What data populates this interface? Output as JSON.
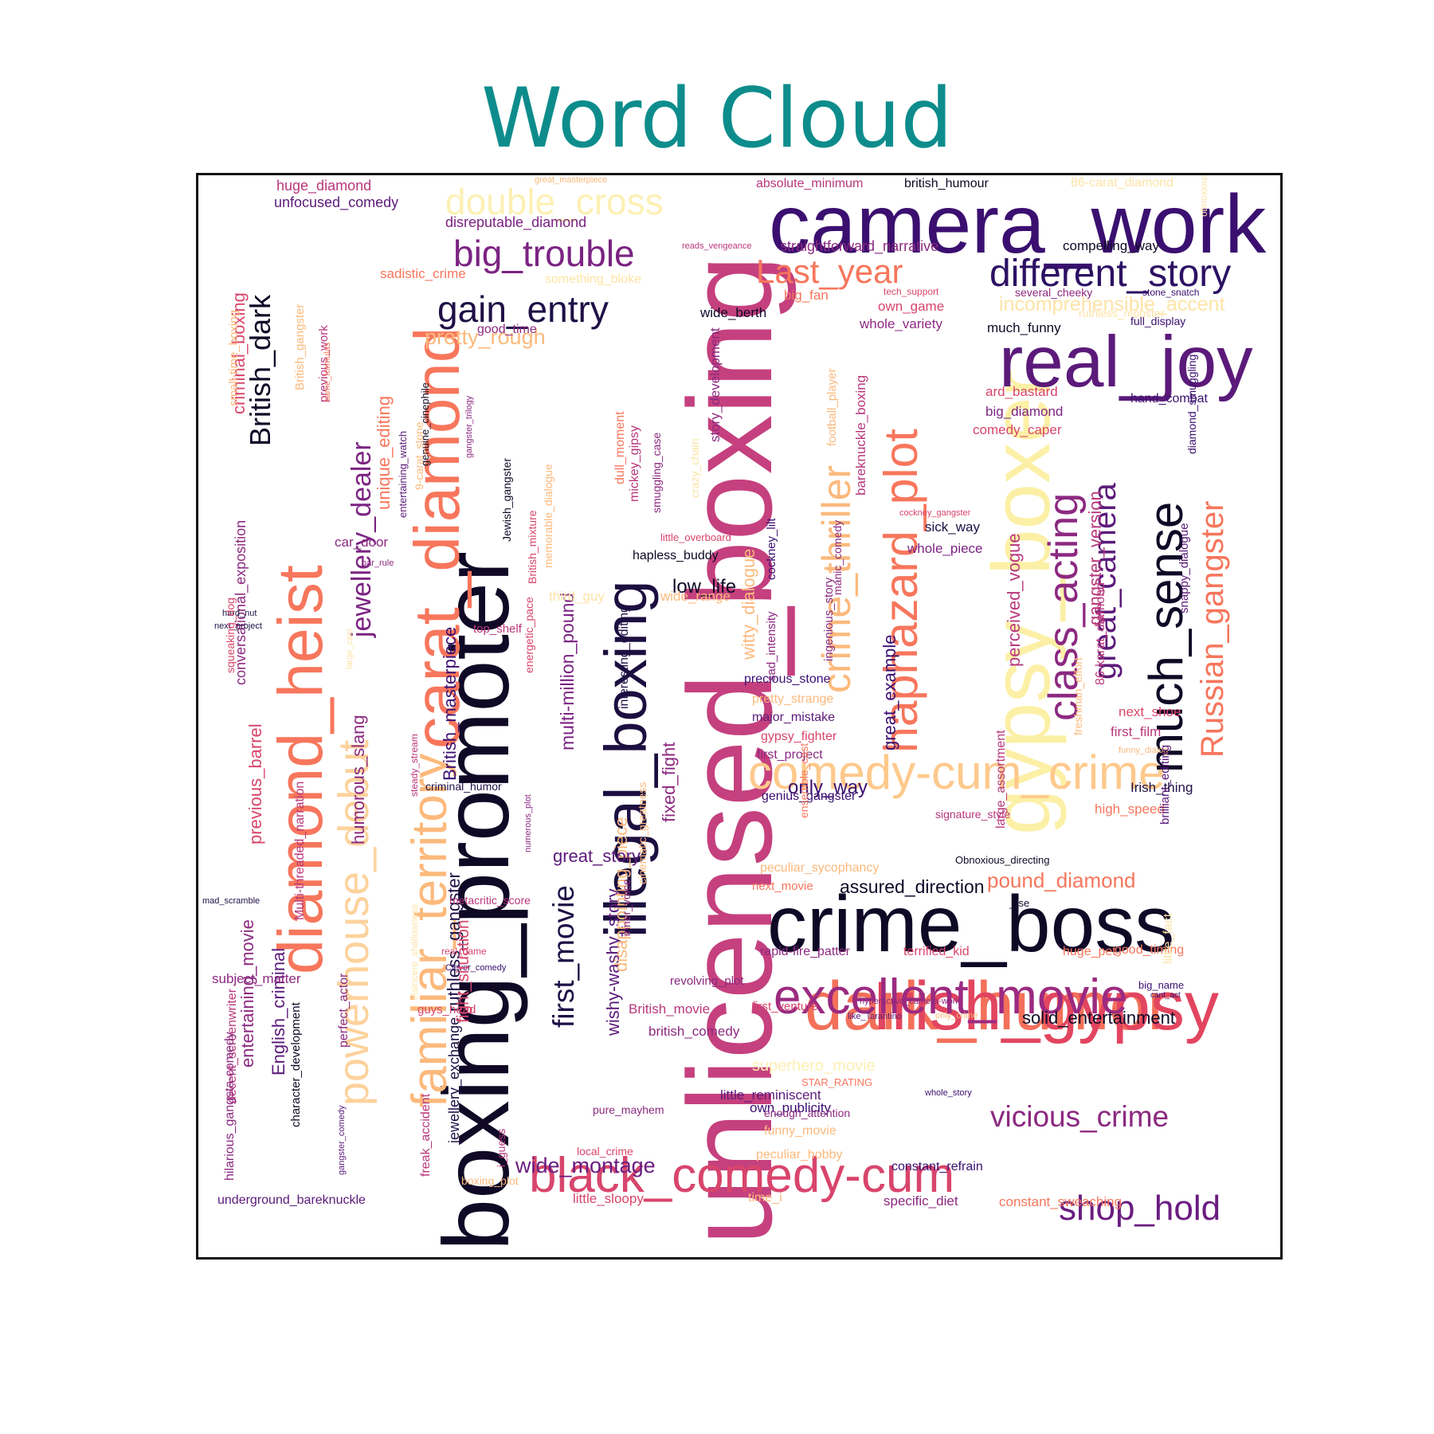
{
  "title": "Word Cloud",
  "words": [
    {
      "text": "unlicensed_boxing",
      "color": "#c5407e"
    },
    {
      "text": "boxing_promoter",
      "color": "#0f0926"
    },
    {
      "text": "camera_work",
      "color": "#3b0f70"
    },
    {
      "text": "crime_boss",
      "color": "#0f0926"
    },
    {
      "text": "gypsy_boxer",
      "color": "#fcf0a6"
    },
    {
      "text": "real_joy",
      "color": "#5b1a7a"
    },
    {
      "text": "dark_humor",
      "color": "#f3705a"
    },
    {
      "text": "Irish_gypsy",
      "color": "#e2455f"
    },
    {
      "text": "illegal_boxing",
      "color": "#1c0f40"
    },
    {
      "text": "diamond_heist",
      "color": "#f7765c"
    },
    {
      "text": "carat_diamond",
      "color": "#f7765c"
    },
    {
      "text": "familiar_territory",
      "color": "#fcb97c"
    },
    {
      "text": "comedy-cum_crime",
      "color": "#fec98c"
    },
    {
      "text": "excellent_movie",
      "color": "#9b2a80"
    },
    {
      "text": "black_comedy-cum",
      "color": "#d8456c"
    },
    {
      "text": "haphazard_plot",
      "color": "#f7765c"
    },
    {
      "text": "crime_thriller",
      "color": "#fcb97c"
    },
    {
      "text": "much_sense",
      "color": "#0f0926"
    },
    {
      "text": "different_story",
      "color": "#2c1163"
    },
    {
      "text": "powerhouse_debut",
      "color": "#fdd29c"
    },
    {
      "text": "double_cross",
      "color": "#fdf0b4"
    },
    {
      "text": "big_trouble",
      "color": "#7b2382"
    },
    {
      "text": "gain_entry",
      "color": "#1e1046"
    },
    {
      "text": "Last_year",
      "color": "#f7765c"
    },
    {
      "text": "class_acting",
      "color": "#8c2981"
    },
    {
      "text": "great_camera",
      "color": "#5b1a7a"
    },
    {
      "text": "Russian_gangster",
      "color": "#f7765c"
    },
    {
      "text": "shop_hold",
      "color": "#6a1c81"
    },
    {
      "text": "vicious_crime",
      "color": "#8c2981"
    },
    {
      "text": "first_movie",
      "color": "#1e1046"
    },
    {
      "text": "jewellery_dealer",
      "color": "#7b2382"
    },
    {
      "text": "British_dark",
      "color": "#0f0926"
    },
    {
      "text": "wide_montage",
      "color": "#6a1c81"
    },
    {
      "text": "solid_entertainment",
      "color": "#0f0926"
    },
    {
      "text": "pound_diamond",
      "color": "#f7765c"
    },
    {
      "text": "assured_direction",
      "color": "#0f0926"
    },
    {
      "text": "multi-million_pound",
      "color": "#7b2382"
    },
    {
      "text": "British_masterpiece",
      "color": "#3b0f70"
    },
    {
      "text": "ruthless_gangster",
      "color": "#1e1046"
    },
    {
      "text": "wishy-washy_story",
      "color": "#5b1a7a"
    },
    {
      "text": "disappointing_piece",
      "color": "#fcb97c"
    },
    {
      "text": "fixed_fight",
      "color": "#8c2981"
    },
    {
      "text": "great_story",
      "color": "#5b1a7a"
    },
    {
      "text": "pretty_rough",
      "color": "#fcb97c"
    },
    {
      "text": "witty_dialogue",
      "color": "#fcb97c"
    },
    {
      "text": "great_example",
      "color": "#3b0f70"
    },
    {
      "text": "perceived_vogue",
      "color": "#b8377c"
    },
    {
      "text": "incomprehensible_accent",
      "color": "#fde4a6"
    },
    {
      "text": "English_criminal",
      "color": "#5b1a7a"
    },
    {
      "text": "entertaining_movie",
      "color": "#8c2981"
    },
    {
      "text": "previous_barrel",
      "color": "#d8456c"
    },
    {
      "text": "humorous_slang",
      "color": "#8c2981"
    },
    {
      "text": "unique_editing",
      "color": "#f7765c"
    },
    {
      "text": "criminal_boxing",
      "color": "#d8456c"
    },
    {
      "text": "conversational_exposition",
      "color": "#8c2981"
    },
    {
      "text": "gangster_version",
      "color": "#b8377c"
    },
    {
      "text": "low_life",
      "color": "#0f0926"
    },
    {
      "text": "only_way",
      "color": "#3b0f70"
    },
    {
      "text": "huge_diamond",
      "color": "#b8377c"
    },
    {
      "text": "unfocused_comedy",
      "color": "#5b1a7a"
    },
    {
      "text": "disreputable_diamond",
      "color": "#7b2382"
    },
    {
      "text": "absolute_minimum",
      "color": "#b8377c"
    },
    {
      "text": "british_humour",
      "color": "#0f0926"
    },
    {
      "text": "86-carat_diamond",
      "color": "#fde4a6"
    },
    {
      "text": "straightforward_narrative",
      "color": "#8c2981"
    },
    {
      "text": "compelling_way",
      "color": "#0f0926"
    },
    {
      "text": "sadistic_crime",
      "color": "#f7765c"
    },
    {
      "text": "something_bloke",
      "color": "#fde4a6"
    },
    {
      "text": "good_time",
      "color": "#8c2981"
    },
    {
      "text": "wide_berth",
      "color": "#0f0926"
    },
    {
      "text": "big_fan",
      "color": "#f7765c"
    },
    {
      "text": "own_game",
      "color": "#d8456c"
    },
    {
      "text": "whole_variety",
      "color": "#8c2981"
    },
    {
      "text": "much_funny",
      "color": "#0f0926"
    },
    {
      "text": "ard_bastard",
      "color": "#d8456c"
    },
    {
      "text": "big_diamond",
      "color": "#7b2382"
    },
    {
      "text": "comedy_caper",
      "color": "#d8456c"
    },
    {
      "text": "hand_combat",
      "color": "#3b0f70"
    },
    {
      "text": "full_display",
      "color": "#3b0f70"
    },
    {
      "text": "several_cheeky",
      "color": "#8c2981"
    },
    {
      "text": "stone_snatch",
      "color": "#3b0f70"
    },
    {
      "text": "ruthless_mobster",
      "color": "#fde4a6"
    },
    {
      "text": "tech_support",
      "color": "#d8456c"
    },
    {
      "text": "reads_vengeance",
      "color": "#b8377c"
    },
    {
      "text": "great_masterpiece",
      "color": "#fcb97c"
    },
    {
      "text": "sick_way",
      "color": "#1e1046"
    },
    {
      "text": "whole_piece",
      "color": "#7b2382"
    },
    {
      "text": "cockney_gangster",
      "color": "#d8456c"
    },
    {
      "text": "car_door",
      "color": "#8c2981"
    },
    {
      "text": "bar_rule",
      "color": "#8c2981"
    },
    {
      "text": "hard_nut",
      "color": "#1e1046"
    },
    {
      "text": "next_project",
      "color": "#1e1046"
    },
    {
      "text": "top_shelf",
      "color": "#b8377c"
    },
    {
      "text": "third_guy",
      "color": "#fde4a6"
    },
    {
      "text": "wide_range",
      "color": "#fcb97c"
    },
    {
      "text": "hapless_buddy",
      "color": "#0f0926"
    },
    {
      "text": "little_overboard",
      "color": "#d8456c"
    },
    {
      "text": "precious_stone",
      "color": "#3b0f70"
    },
    {
      "text": "pretty_strange",
      "color": "#fcb97c"
    },
    {
      "text": "major_mistake",
      "color": "#5b1a7a"
    },
    {
      "text": "gypsy_fighter",
      "color": "#d8456c"
    },
    {
      "text": "first_project",
      "color": "#8c2981"
    },
    {
      "text": "genius_gangster",
      "color": "#3b0f70"
    },
    {
      "text": "signature_style",
      "color": "#b8377c"
    },
    {
      "text": "high_speed",
      "color": "#f7765c"
    },
    {
      "text": "Irish_thing",
      "color": "#1e1046"
    },
    {
      "text": "next_shoe",
      "color": "#d8456c"
    },
    {
      "text": "first_film",
      "color": "#b8377c"
    },
    {
      "text": "funny_dialog",
      "color": "#fcb97c"
    },
    {
      "text": "peculiar_sycophancy",
      "color": "#fcb97c"
    },
    {
      "text": "next_movie",
      "color": "#f7765c"
    },
    {
      "text": "Obnoxious_directing",
      "color": "#0f0926"
    },
    {
      "text": "_rse",
      "color": "#0f0926"
    },
    {
      "text": "rapid-fire_patter",
      "color": "#8c2981"
    },
    {
      "text": "terrified_kid",
      "color": "#d8456c"
    },
    {
      "text": "huge_pet",
      "color": "#f7765c"
    },
    {
      "text": "good_timing",
      "color": "#f7765c"
    },
    {
      "text": "big_name",
      "color": "#3b0f70"
    },
    {
      "text": "cant_act",
      "color": "#3b0f70"
    },
    {
      "text": "revolving_plot",
      "color": "#8c2981"
    },
    {
      "text": "first_venture",
      "color": "#d8456c"
    },
    {
      "text": "hyperactive_camera-work",
      "color": "#8c2981"
    },
    {
      "text": "like_Tarantino",
      "color": "#5b1a7a"
    },
    {
      "text": "only_crime",
      "color": "#fcb97c"
    },
    {
      "text": "British_movie",
      "color": "#b8377c"
    },
    {
      "text": "british_comedy",
      "color": "#8c2981"
    },
    {
      "text": "superhero_movie",
      "color": "#fdf0b4"
    },
    {
      "text": "STAR_RATING",
      "color": "#f7765c"
    },
    {
      "text": "whole_story",
      "color": "#3b0f70"
    },
    {
      "text": "little_reminiscent",
      "color": "#5b1a7a"
    },
    {
      "text": "own_publicity",
      "color": "#3b0f70"
    },
    {
      "text": "pure_mayhem",
      "color": "#8c2981"
    },
    {
      "text": "enough_attention",
      "color": "#8c2981"
    },
    {
      "text": "funny_movie",
      "color": "#fcb97c"
    },
    {
      "text": "local_crime",
      "color": "#d8456c"
    },
    {
      "text": "peculiar_hobby",
      "color": "#fcb97c"
    },
    {
      "text": "constant_refrain",
      "color": "#3b0f70"
    },
    {
      "text": "boxing_plot",
      "color": "#fcb97c"
    },
    {
      "text": "little_sloopy",
      "color": "#d8456c"
    },
    {
      "text": "time_i",
      "color": "#fcb97c"
    },
    {
      "text": "specific_diet",
      "color": "#8c2981"
    },
    {
      "text": "constant_sweaching",
      "color": "#f7765c"
    },
    {
      "text": "underground_bareknuckle",
      "color": "#5b1a7a"
    },
    {
      "text": "subject_matter",
      "color": "#8c2981"
    },
    {
      "text": "guys_head",
      "color": "#d8456c"
    },
    {
      "text": "metacritic_score",
      "color": "#b8377c"
    },
    {
      "text": "real_name",
      "color": "#d8456c"
    },
    {
      "text": "Clever_comedy",
      "color": "#3b0f70"
    },
    {
      "text": "criminal_humor",
      "color": "#1e1046"
    },
    {
      "text": "mad_scramble",
      "color": "#1e1046"
    },
    {
      "text": "i_guess",
      "color": "#b8377c"
    },
    {
      "text": "jewellery_exchange",
      "color": "#1e1046"
    },
    {
      "text": "freak_accident",
      "color": "#b8377c"
    },
    {
      "text": "fight_situation",
      "color": "#d8456c"
    },
    {
      "text": "insincere_shallowness",
      "color": "#fde4a6"
    },
    {
      "text": "steady_stream",
      "color": "#b8377c"
    },
    {
      "text": "Multi-threaded_narration",
      "color": "#b8377c"
    },
    {
      "text": "perfect_actor",
      "color": "#8c2981"
    },
    {
      "text": "character_development",
      "color": "#0f0926"
    },
    {
      "text": "gangster_comedy",
      "color": "#5b1a7a"
    },
    {
      "text": "decent_screenwriter",
      "color": "#b8377c"
    },
    {
      "text": "hilarious_gangsta-comedy",
      "color": "#8c2981"
    },
    {
      "text": "squeaking_dog",
      "color": "#d8456c"
    },
    {
      "text": "large_cast",
      "color": "#fde4a6"
    },
    {
      "text": "British_gangster",
      "color": "#fcb97c"
    },
    {
      "text": "previous_work",
      "color": "#b8377c"
    },
    {
      "text": "same_formulas",
      "color": "#f7765c"
    },
    {
      "text": "small-time_boxing",
      "color": "#fcb97c"
    },
    {
      "text": "entertaining_watch",
      "color": "#5b1a7a"
    },
    {
      "text": "genuine_cinephile",
      "color": "#0f0926"
    },
    {
      "text": "gangster_trilogy",
      "color": "#8c2981"
    },
    {
      "text": "9-carat_stone",
      "color": "#fcb97c"
    },
    {
      "text": "Jewish_gangster",
      "color": "#0f0926"
    },
    {
      "text": "British_mixture",
      "color": "#d8456c"
    },
    {
      "text": "memorable_dialogue",
      "color": "#fcb97c"
    },
    {
      "text": "energetic_pace",
      "color": "#d8456c"
    },
    {
      "text": "numerous_plot",
      "color": "#8c2981"
    },
    {
      "text": "dull_moment",
      "color": "#f7765c"
    },
    {
      "text": "mickey_gipsy",
      "color": "#b8377c"
    },
    {
      "text": "smuggling_case",
      "color": "#8c2981"
    },
    {
      "text": "interesting_editing",
      "color": "#1e1046"
    },
    {
      "text": "inner_voice",
      "color": "#8c2981"
    },
    {
      "text": "cinematic_greatness",
      "color": "#fcb97c"
    },
    {
      "text": "crazy_chain",
      "color": "#fde4a6"
    },
    {
      "text": "story_development",
      "color": "#8c2981"
    },
    {
      "text": "cockney_lilt",
      "color": "#3b0f70"
    },
    {
      "text": "sad_intensity",
      "color": "#8c2981"
    },
    {
      "text": "ingenious_story",
      "color": "#8c2981"
    },
    {
      "text": "manic_comedy",
      "color": "#8c2981"
    },
    {
      "text": "ensemble_cast",
      "color": "#f7765c"
    },
    {
      "text": "football_player",
      "color": "#fcb97c"
    },
    {
      "text": "bareknuckle_boxing",
      "color": "#b8377c"
    },
    {
      "text": "large_assortment",
      "color": "#b8377c"
    },
    {
      "text": "freshman_effort",
      "color": "#fcb97c"
    },
    {
      "text": "86-karat_diamond",
      "color": "#b8377c"
    },
    {
      "text": "diamond_smuggling",
      "color": "#3b0f70"
    },
    {
      "text": "brilliant_editing",
      "color": "#5b1a7a"
    },
    {
      "text": "snappy_dialogue",
      "color": "#5b1a7a"
    },
    {
      "text": "little_fact",
      "color": "#fde4a6"
    },
    {
      "text": "obnoxious_voice",
      "color": "#fde4a6"
    }
  ]
}
